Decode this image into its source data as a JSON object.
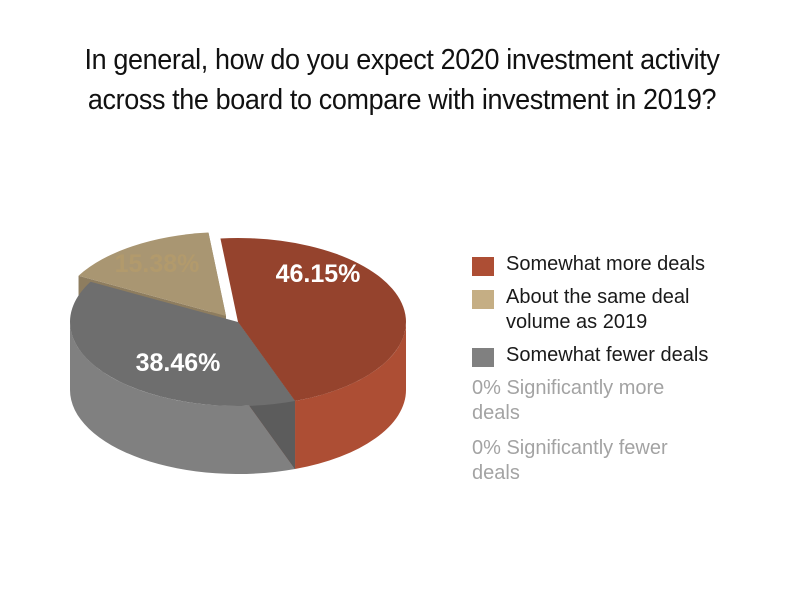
{
  "chart_data": {
    "type": "pie",
    "title": "In general, how do you expect 2020 investment activity across the board to compare with investment in 2019?",
    "slices": [
      {
        "label": "Somewhat more deals",
        "value": 46.15,
        "display": "46.15%",
        "color": "#ad4e34",
        "label_color": "#ffffff"
      },
      {
        "label": "Somewhat fewer deals",
        "value": 38.46,
        "display": "38.46%",
        "color": "#808080",
        "label_color": "#ffffff"
      },
      {
        "label": "About the same deal volume as 2019",
        "value": 15.38,
        "display": "15.38%",
        "color": "#c5ae84",
        "label_color": "#b29a6c"
      }
    ],
    "legend": [
      {
        "label": "Somewhat more deals",
        "color": "#ad4e34",
        "swatch": true
      },
      {
        "label": "About the same deal volume as 2019",
        "color": "#c5ae84",
        "swatch": true
      },
      {
        "label": "Somewhat fewer deals",
        "color": "#808080",
        "swatch": true
      },
      {
        "label": "0% Significantly more deals",
        "swatch": false
      },
      {
        "label": "0% Significantly fewer deals",
        "swatch": false
      }
    ],
    "legend_position": "right"
  }
}
